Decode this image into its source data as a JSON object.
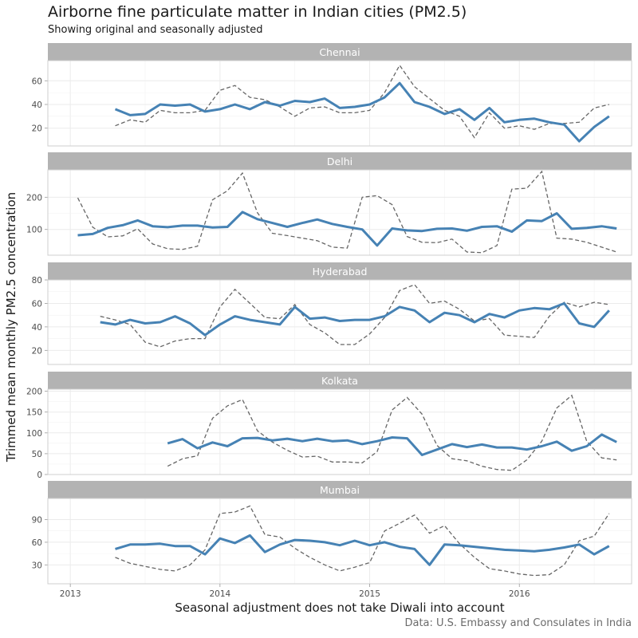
{
  "title": "Airborne fine particulate matter in Indian cities (PM2.5)",
  "subtitle": "Showing original and seasonally adjusted",
  "caption": "Data: U.S. Embassy and Consulates in India",
  "colors": {
    "adjusted": "#4682b4",
    "original": "#666666",
    "strip": "#b3b3b3",
    "grid": "#ebebeb"
  },
  "chart_data": {
    "type": "line",
    "facet_layout": "vertical",
    "xlabel": "Seasonal adjustment does not take Diwali into account",
    "ylabel": "Trimmed mean monthly PM2.5 concentration",
    "x_ticks": [
      "2013",
      "2014",
      "2015",
      "2016"
    ],
    "x_range": [
      2012.85,
      2016.75
    ],
    "facets": [
      {
        "name": "Chennai",
        "ylim": [
          5,
          77
        ],
        "y_ticks": [
          20,
          40,
          60
        ],
        "adjusted": {
          "x": [
            2013.3,
            2013.4,
            2013.5,
            2013.6,
            2013.7,
            2013.8,
            2013.9,
            2014.0,
            2014.1,
            2014.2,
            2014.3,
            2014.4,
            2014.5,
            2014.6,
            2014.7,
            2014.8,
            2014.9,
            2015.0,
            2015.1,
            2015.2,
            2015.3,
            2015.4,
            2015.5,
            2015.6,
            2015.7,
            2015.8,
            2015.9,
            2016.0,
            2016.1,
            2016.2,
            2016.3,
            2016.4,
            2016.5,
            2016.6
          ],
          "y": [
            36,
            31,
            32,
            40,
            39,
            40,
            34,
            36,
            40,
            36,
            42,
            39,
            43,
            42,
            45,
            37,
            38,
            40,
            46,
            58,
            42,
            38,
            32,
            36,
            27,
            37,
            25,
            27,
            28,
            25,
            23,
            9,
            21,
            30
          ]
        },
        "original": {
          "x": [
            2013.3,
            2013.4,
            2013.5,
            2013.6,
            2013.7,
            2013.8,
            2013.9,
            2014.0,
            2014.1,
            2014.2,
            2014.3,
            2014.4,
            2014.5,
            2014.6,
            2014.7,
            2014.8,
            2014.9,
            2015.0,
            2015.1,
            2015.2,
            2015.3,
            2015.4,
            2015.5,
            2015.6,
            2015.7,
            2015.8,
            2015.9,
            2016.0,
            2016.1,
            2016.2,
            2016.3,
            2016.4,
            2016.5,
            2016.6
          ],
          "y": [
            22,
            27,
            25,
            35,
            33,
            33,
            35,
            52,
            56,
            46,
            44,
            38,
            30,
            37,
            38,
            33,
            33,
            35,
            50,
            73,
            55,
            45,
            35,
            30,
            12,
            33,
            20,
            22,
            19,
            24,
            24,
            25,
            37,
            40
          ]
        }
      },
      {
        "name": "Delhi",
        "ylim": [
          20,
          285
        ],
        "y_ticks": [
          100,
          200
        ],
        "adjusted": {
          "x": [
            2013.05,
            2013.15,
            2013.25,
            2013.35,
            2013.45,
            2013.55,
            2013.65,
            2013.75,
            2013.85,
            2013.95,
            2014.05,
            2014.15,
            2014.25,
            2014.35,
            2014.45,
            2014.55,
            2014.65,
            2014.75,
            2014.85,
            2014.95,
            2015.05,
            2015.15,
            2015.25,
            2015.35,
            2015.45,
            2015.55,
            2015.65,
            2015.75,
            2015.85,
            2015.95,
            2016.05,
            2016.15,
            2016.25,
            2016.35,
            2016.45,
            2016.55,
            2016.65
          ],
          "y": [
            82,
            86,
            105,
            113,
            128,
            110,
            107,
            112,
            112,
            106,
            108,
            154,
            132,
            120,
            108,
            120,
            131,
            117,
            108,
            100,
            50,
            103,
            97,
            95,
            102,
            103,
            96,
            108,
            110,
            93,
            128,
            126,
            150,
            102,
            105,
            110,
            103
          ]
        },
        "original": {
          "x": [
            2013.05,
            2013.15,
            2013.25,
            2013.35,
            2013.45,
            2013.55,
            2013.65,
            2013.75,
            2013.85,
            2013.95,
            2014.05,
            2014.15,
            2014.25,
            2014.35,
            2014.45,
            2014.55,
            2014.65,
            2014.75,
            2014.85,
            2014.95,
            2015.05,
            2015.15,
            2015.25,
            2015.35,
            2015.45,
            2015.55,
            2015.65,
            2015.75,
            2015.85,
            2015.95,
            2016.05,
            2016.15,
            2016.25,
            2016.35,
            2016.45,
            2016.55,
            2016.65
          ],
          "y": [
            198,
            107,
            77,
            80,
            102,
            55,
            40,
            38,
            48,
            192,
            220,
            275,
            152,
            88,
            81,
            73,
            65,
            45,
            42,
            200,
            205,
            177,
            78,
            60,
            59,
            70,
            30,
            28,
            50,
            225,
            228,
            280,
            73,
            70,
            60,
            45,
            30
          ]
        }
      },
      {
        "name": "Hyderabad",
        "ylim": [
          8,
          80
        ],
        "y_ticks": [
          20,
          40,
          60,
          80
        ],
        "adjusted": {
          "x": [
            2013.2,
            2013.3,
            2013.4,
            2013.5,
            2013.6,
            2013.7,
            2013.8,
            2013.9,
            2014.0,
            2014.1,
            2014.2,
            2014.3,
            2014.4,
            2014.5,
            2014.6,
            2014.7,
            2014.8,
            2014.9,
            2015.0,
            2015.1,
            2015.2,
            2015.3,
            2015.4,
            2015.5,
            2015.6,
            2015.7,
            2015.8,
            2015.9,
            2016.0,
            2016.1,
            2016.2,
            2016.3,
            2016.4,
            2016.5,
            2016.6
          ],
          "y": [
            44,
            42,
            46,
            43,
            44,
            49,
            43,
            33,
            42,
            49,
            46,
            44,
            42,
            57,
            47,
            48,
            45,
            46,
            46,
            49,
            57,
            54,
            44,
            52,
            50,
            44,
            51,
            48,
            54,
            56,
            55,
            60,
            43,
            40,
            54
          ]
        },
        "original": {
          "x": [
            2013.2,
            2013.3,
            2013.4,
            2013.5,
            2013.6,
            2013.7,
            2013.8,
            2013.9,
            2014.0,
            2014.1,
            2014.2,
            2014.3,
            2014.4,
            2014.5,
            2014.6,
            2014.7,
            2014.8,
            2014.9,
            2015.0,
            2015.1,
            2015.2,
            2015.3,
            2015.4,
            2015.5,
            2015.6,
            2015.7,
            2015.8,
            2015.9,
            2016.0,
            2016.1,
            2016.2,
            2016.3,
            2016.4,
            2016.5,
            2016.6
          ],
          "y": [
            49,
            46,
            42,
            27,
            23,
            28,
            30,
            30,
            57,
            72,
            60,
            48,
            47,
            59,
            42,
            35,
            25,
            25,
            34,
            48,
            71,
            76,
            60,
            62,
            55,
            45,
            47,
            33,
            32,
            31,
            49,
            61,
            57,
            61,
            59
          ]
        }
      },
      {
        "name": "Kolkata",
        "ylim": [
          0,
          205
        ],
        "y_ticks": [
          0,
          50,
          100,
          150,
          200
        ],
        "adjusted": {
          "x": [
            2013.65,
            2013.75,
            2013.85,
            2013.95,
            2014.05,
            2014.15,
            2014.25,
            2014.35,
            2014.45,
            2014.55,
            2014.65,
            2014.75,
            2014.85,
            2014.95,
            2015.05,
            2015.15,
            2015.25,
            2015.35,
            2015.45,
            2015.55,
            2015.65,
            2015.75,
            2015.85,
            2015.95,
            2016.05,
            2016.15,
            2016.25,
            2016.35,
            2016.45,
            2016.55,
            2016.65
          ],
          "y": [
            75,
            85,
            63,
            77,
            68,
            87,
            88,
            82,
            86,
            80,
            86,
            80,
            82,
            73,
            80,
            89,
            87,
            47,
            60,
            73,
            66,
            72,
            65,
            65,
            60,
            68,
            79,
            57,
            68,
            96,
            78
          ]
        },
        "original": {
          "x": [
            2013.65,
            2013.75,
            2013.85,
            2013.95,
            2014.05,
            2014.15,
            2014.25,
            2014.35,
            2014.45,
            2014.55,
            2014.65,
            2014.75,
            2014.85,
            2014.95,
            2015.05,
            2015.15,
            2015.25,
            2015.35,
            2015.45,
            2015.55,
            2015.65,
            2015.75,
            2015.85,
            2015.95,
            2016.05,
            2016.15,
            2016.25,
            2016.35,
            2016.45,
            2016.55,
            2016.65
          ],
          "y": [
            20,
            38,
            45,
            135,
            165,
            180,
            105,
            78,
            58,
            42,
            44,
            30,
            30,
            28,
            55,
            155,
            185,
            145,
            70,
            38,
            33,
            20,
            12,
            10,
            35,
            80,
            160,
            190,
            80,
            40,
            35
          ]
        }
      },
      {
        "name": "Mumbai",
        "ylim": [
          5,
          118
        ],
        "y_ticks": [
          30,
          60,
          90
        ],
        "adjusted": {
          "x": [
            2013.3,
            2013.4,
            2013.5,
            2013.6,
            2013.7,
            2013.8,
            2013.9,
            2014.0,
            2014.1,
            2014.2,
            2014.3,
            2014.4,
            2014.5,
            2014.6,
            2014.7,
            2014.8,
            2014.9,
            2015.0,
            2015.1,
            2015.2,
            2015.3,
            2015.4,
            2015.5,
            2015.6,
            2015.7,
            2015.8,
            2015.9,
            2016.0,
            2016.1,
            2016.2,
            2016.3,
            2016.4,
            2016.5,
            2016.6
          ],
          "y": [
            51,
            57,
            57,
            58,
            55,
            55,
            44,
            65,
            59,
            69,
            47,
            57,
            63,
            62,
            60,
            56,
            62,
            56,
            60,
            54,
            51,
            30,
            57,
            56,
            54,
            52,
            50,
            49,
            48,
            50,
            53,
            57,
            44,
            55
          ]
        },
        "original": {
          "x": [
            2013.3,
            2013.4,
            2013.5,
            2013.6,
            2013.7,
            2013.8,
            2013.9,
            2014.0,
            2014.1,
            2014.2,
            2014.3,
            2014.4,
            2014.5,
            2014.6,
            2014.7,
            2014.8,
            2014.9,
            2015.0,
            2015.1,
            2015.2,
            2015.3,
            2015.4,
            2015.5,
            2015.6,
            2015.7,
            2015.8,
            2015.9,
            2016.0,
            2016.1,
            2016.2,
            2016.3,
            2016.4,
            2016.5,
            2016.6
          ],
          "y": [
            40,
            32,
            28,
            24,
            22,
            30,
            50,
            98,
            100,
            108,
            70,
            67,
            52,
            40,
            30,
            22,
            27,
            33,
            75,
            85,
            96,
            72,
            82,
            58,
            40,
            25,
            22,
            18,
            16,
            17,
            30,
            62,
            68,
            98
          ]
        }
      }
    ]
  }
}
